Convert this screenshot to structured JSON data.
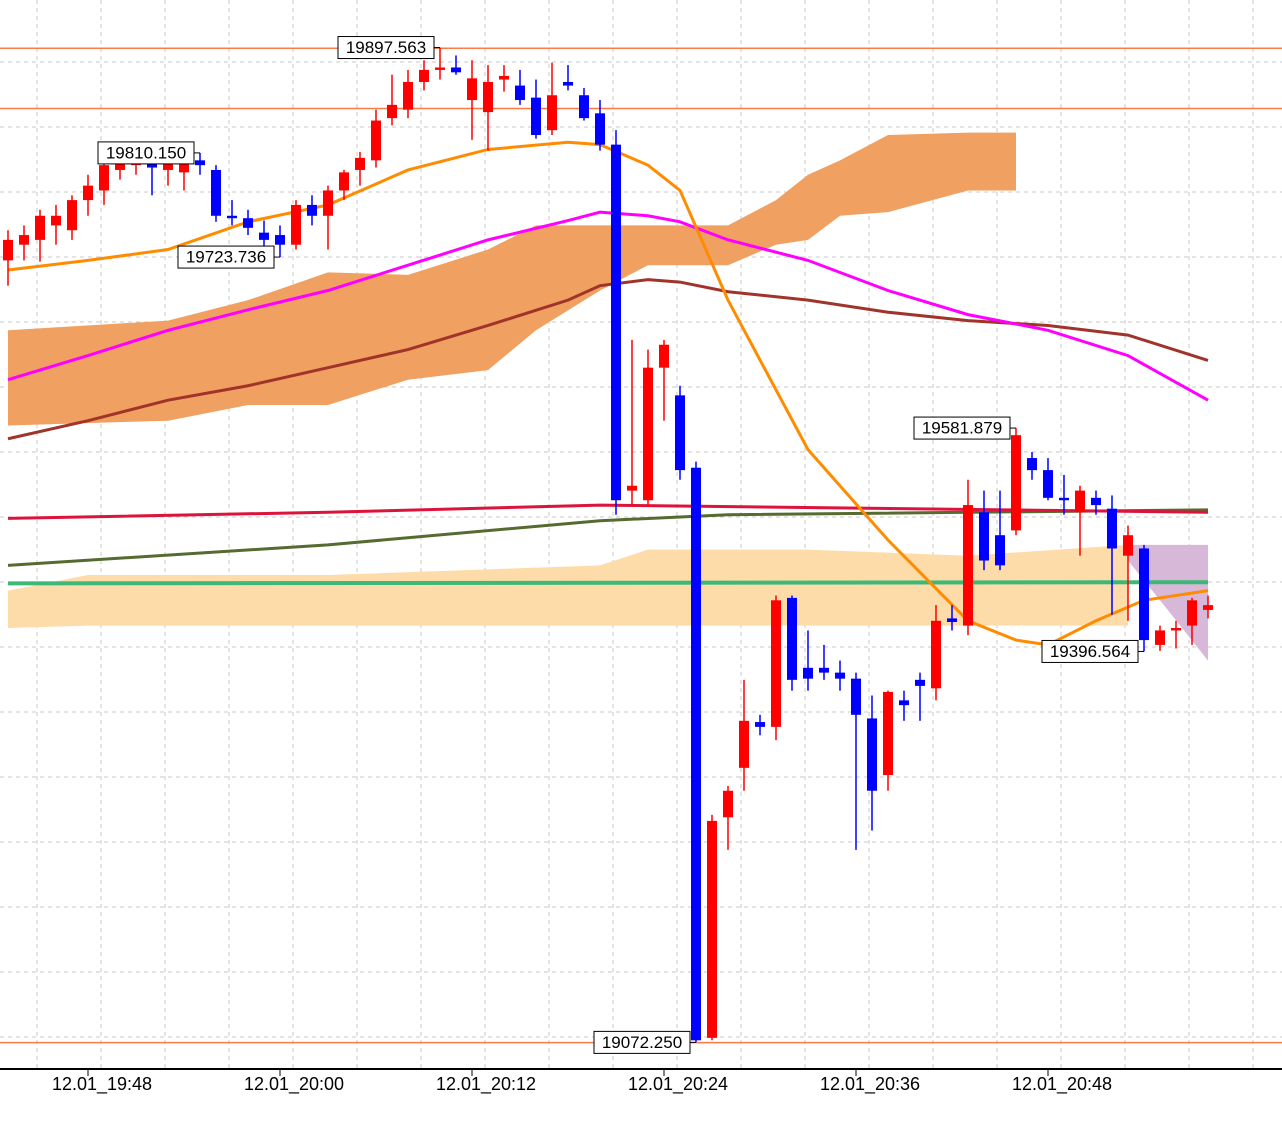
{
  "chart_data": {
    "type": "candlestick",
    "categories": [
      null,
      null,
      null,
      null,
      null,
      "12.01_19:48",
      null,
      null,
      null,
      null,
      null,
      null,
      null,
      null,
      null,
      null,
      null,
      "12.01_20:00",
      null,
      null,
      null,
      null,
      null,
      null,
      null,
      null,
      null,
      null,
      null,
      "12.01_20:12",
      null,
      null,
      null,
      null,
      null,
      null,
      null,
      null,
      null,
      null,
      null,
      "12.01_20:24",
      null,
      null,
      null,
      null,
      null,
      null,
      null,
      null,
      null,
      null,
      null,
      "12.01_20:36",
      null,
      null,
      null,
      null,
      null,
      null,
      null,
      null,
      null,
      null,
      null,
      "12.01_20:48",
      null,
      null,
      null,
      null,
      null,
      null,
      null,
      null,
      null,
      null
    ],
    "open": [
      19721,
      19734,
      19738,
      19750,
      19746,
      19771,
      19779,
      19796,
      19800,
      19802,
      19796,
      19794,
      19804,
      19796,
      19758,
      19756,
      19744,
      19742,
      19734,
      19767,
      19758,
      19779,
      19796,
      19804,
      19839,
      19846,
      19869,
      19879,
      19881,
      19854,
      19844,
      19871,
      19866,
      19856,
      19829,
      19869,
      19858,
      19843,
      19817,
      19530,
      19522,
      19632,
      19609,
      19549,
      19076,
      19259,
      19300,
      19338,
      19334,
      19441,
      19383,
      19383,
      19379,
      19374,
      19341,
      19294,
      19356,
      19373,
      19366,
      19424,
      19418,
      19512,
      19493,
      19497,
      19557,
      19547,
      19524,
      19512,
      19524,
      19515,
      19476,
      19482,
      19402,
      19414,
      19418,
      19431
    ],
    "high": [
      19746,
      19750,
      19763,
      19767,
      19775,
      19792,
      19808,
      19808,
      19808,
      19808,
      19806,
      19808,
      19810.15,
      19800,
      19771,
      19763,
      19754,
      19750,
      19771,
      19775,
      19783,
      19796,
      19811,
      19846,
      19875,
      19879,
      19887,
      19897.563,
      19891,
      19887,
      19883,
      19883,
      19879,
      19871,
      19885,
      19883,
      19864,
      19854,
      19829,
      19655,
      19647,
      19655,
      19617,
      19554,
      19261,
      19285,
      19373,
      19344,
      19443,
      19443,
      19414,
      19402,
      19389,
      19379,
      19360,
      19364,
      19364,
      19379,
      19435,
      19435,
      19539,
      19530,
      19530,
      19581.879,
      19562,
      19557,
      19543,
      19534,
      19530,
      19526,
      19501,
      19485,
      19418,
      19422,
      19441,
      19443
    ],
    "low": [
      19700,
      19721,
      19720,
      19734,
      19738,
      19758,
      19767,
      19788,
      19792,
      19775,
      19783,
      19779,
      19792,
      19753,
      19750,
      19742,
      19730,
      19723.736,
      19730,
      19750,
      19730,
      19771,
      19783,
      19798,
      19833,
      19839,
      19862,
      19871,
      19875,
      19821,
      19812,
      19861,
      19850,
      19822,
      19825,
      19862,
      19837,
      19812,
      19510,
      19518,
      19518,
      19588,
      19539,
      19072.25,
      19074,
      19232,
      19281,
      19327,
      19323,
      19364,
      19364,
      19373,
      19364,
      19232,
      19248,
      19281,
      19339,
      19339,
      19356,
      19414,
      19410,
      19464,
      19464,
      19493,
      19539,
      19522,
      19510,
      19476,
      19510,
      19427,
      19422,
      19396.564,
      19397,
      19399,
      19402,
      19424
    ],
    "close": [
      19738,
      19742,
      19758,
      19758,
      19771,
      19783,
      19800,
      19804,
      19804,
      19798,
      19802,
      19802,
      19800,
      19758,
      19756,
      19748,
      19738,
      19734,
      19767,
      19758,
      19779,
      19794,
      19806,
      19837,
      19850,
      19869,
      19879,
      19881,
      19877,
      19872,
      19869,
      19874,
      19854,
      19825,
      19858,
      19866,
      19839,
      19817,
      19522,
      19534,
      19632,
      19651,
      19547,
      19074,
      19256,
      19281,
      19339,
      19334,
      19439,
      19373,
      19374,
      19379,
      19374,
      19344,
      19281,
      19363,
      19352,
      19368,
      19422,
      19421,
      19518,
      19472,
      19468,
      19576,
      19547,
      19524,
      19522,
      19530,
      19518,
      19482,
      19493,
      19406,
      19414,
      19416,
      19439,
      19435
    ],
    "up_color": "#ff0000",
    "down_color": "#0000ff",
    "ylim": [
      19051,
      19937
    ],
    "grid": true,
    "levels": {
      "color": "#ff7a45",
      "values": [
        19897,
        19847,
        19072
      ]
    },
    "annotations": [
      {
        "index": 27,
        "value": 19897.563,
        "label": "19897.563"
      },
      {
        "index": 12,
        "value": 19810.15,
        "label": "19810.150"
      },
      {
        "index": 17,
        "value": 19723.736,
        "label": "19723.736"
      },
      {
        "index": 43,
        "value": 19072.25,
        "label": "19072.250"
      },
      {
        "index": 63,
        "value": 19581.879,
        "label": "19581.879"
      },
      {
        "index": 71,
        "value": 19396.564,
        "label": "19396.564"
      }
    ],
    "clouds": [
      {
        "color": "#fddcaa",
        "x": [
          0,
          5,
          20,
          37,
          40,
          50,
          60,
          70
        ],
        "upper": [
          19447,
          19460,
          19460,
          19468,
          19481,
          19481,
          19476,
          19485
        ],
        "lower": [
          19416,
          19418,
          19418,
          19418,
          19418,
          19418,
          19418,
          19418
        ]
      },
      {
        "color": "#d8b8d8",
        "x": [
          70,
          72,
          75
        ],
        "upper": [
          19485,
          19485,
          19485
        ],
        "lower": [
          19472,
          19439,
          19389
        ]
      },
      {
        "color": "#f0a060",
        "x": [
          0,
          10,
          15,
          20,
          25,
          30,
          33,
          37,
          40,
          45,
          48,
          50,
          52,
          55,
          60,
          63
        ],
        "upper": [
          19663,
          19671,
          19688,
          19711,
          19709,
          19730,
          19750,
          19750,
          19750,
          19750,
          19771,
          19792,
          19804,
          19825,
          19827,
          19827
        ],
        "lower": [
          19584,
          19588,
          19601,
          19601,
          19622,
          19630,
          19663,
          19696,
          19717,
          19717,
          19734,
          19738,
          19758,
          19761,
          19779,
          19779
        ]
      }
    ],
    "lines": [
      {
        "color": "#3cb878",
        "width": 4,
        "x": [
          0,
          75
        ],
        "values": [
          19453,
          19454
        ]
      },
      {
        "color": "#556b2f",
        "width": 3,
        "x": [
          0,
          20,
          37,
          45,
          75
        ],
        "values": [
          19468,
          19485,
          19505,
          19510,
          19514
        ]
      },
      {
        "color": "#dc143c",
        "width": 3,
        "x": [
          0,
          20,
          37,
          75
        ],
        "values": [
          19507,
          19512,
          19518,
          19512
        ]
      },
      {
        "color": "#a0342a",
        "width": 3,
        "x": [
          0,
          5,
          10,
          15,
          20,
          25,
          30,
          35,
          37,
          40,
          42,
          45,
          50,
          55,
          60,
          65,
          70,
          75
        ],
        "values": [
          19573,
          19588,
          19605,
          19617,
          19632,
          19647,
          19667,
          19688,
          19700,
          19705,
          19703,
          19695,
          19688,
          19678,
          19671,
          19667,
          19659,
          19638
        ]
      },
      {
        "color": "#ff00ff",
        "width": 3,
        "x": [
          0,
          5,
          10,
          15,
          20,
          25,
          30,
          35,
          37,
          40,
          42,
          45,
          50,
          55,
          60,
          65,
          70,
          75
        ],
        "values": [
          19622,
          19642,
          19663,
          19680,
          19696,
          19717,
          19738,
          19754,
          19761,
          19758,
          19753,
          19738,
          19721,
          19696,
          19676,
          19663,
          19642,
          19605
        ]
      },
      {
        "color": "#ff8c00",
        "width": 3,
        "x": [
          0,
          5,
          10,
          15,
          20,
          25,
          30,
          35,
          37,
          40,
          42,
          45,
          50,
          55,
          60,
          63,
          65,
          68,
          71,
          75
        ],
        "values": [
          19713,
          19721,
          19730,
          19753,
          19767,
          19796,
          19813,
          19819,
          19817,
          19800,
          19779,
          19688,
          19564,
          19489,
          19422,
          19406,
          19402,
          19422,
          19439,
          19447
        ]
      }
    ]
  }
}
